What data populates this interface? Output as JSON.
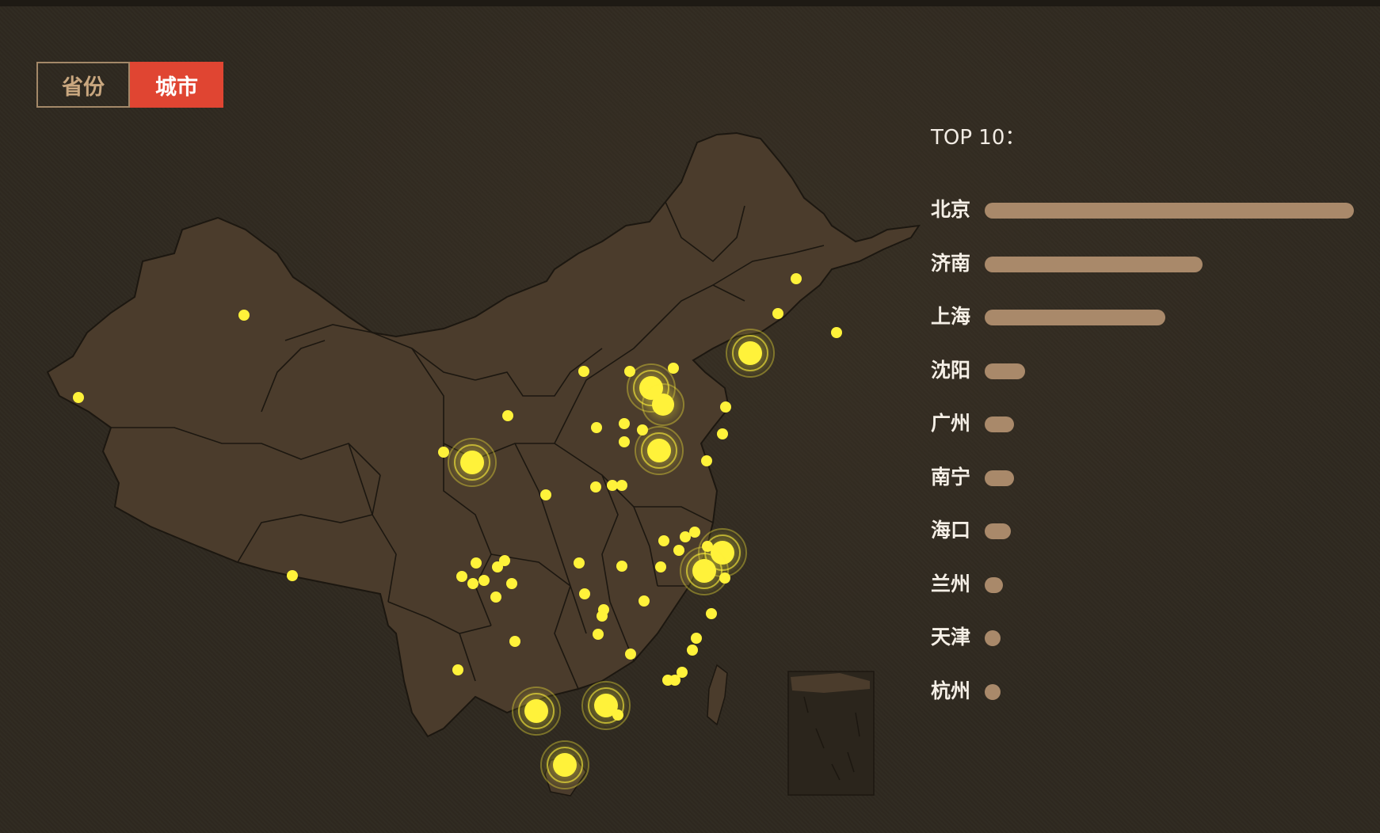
{
  "toggle": {
    "province_label": "省份",
    "city_label": "城市",
    "active": "city"
  },
  "ranking": {
    "title": "TOP 10：",
    "bar_color": "#a9896a",
    "items": [
      {
        "name": "北京",
        "share": 1.0
      },
      {
        "name": "济南",
        "share": 0.59
      },
      {
        "name": "上海",
        "share": 0.49
      },
      {
        "name": "沈阳",
        "share": 0.11
      },
      {
        "name": "广州",
        "share": 0.08
      },
      {
        "name": "南宁",
        "share": 0.08
      },
      {
        "name": "海口",
        "share": 0.07
      },
      {
        "name": "兰州",
        "share": 0.05
      },
      {
        "name": "天津",
        "share": 0.04
      },
      {
        "name": "杭州",
        "share": 0.04
      }
    ]
  },
  "map": {
    "land_color": "#4b3c2c",
    "border_color": "#1c1710",
    "point_color": "#fff23a",
    "highlighted_cities": [
      "北京",
      "济南",
      "上海",
      "沈阳",
      "广州",
      "南宁",
      "海口",
      "兰州",
      "天津",
      "杭州"
    ]
  }
}
